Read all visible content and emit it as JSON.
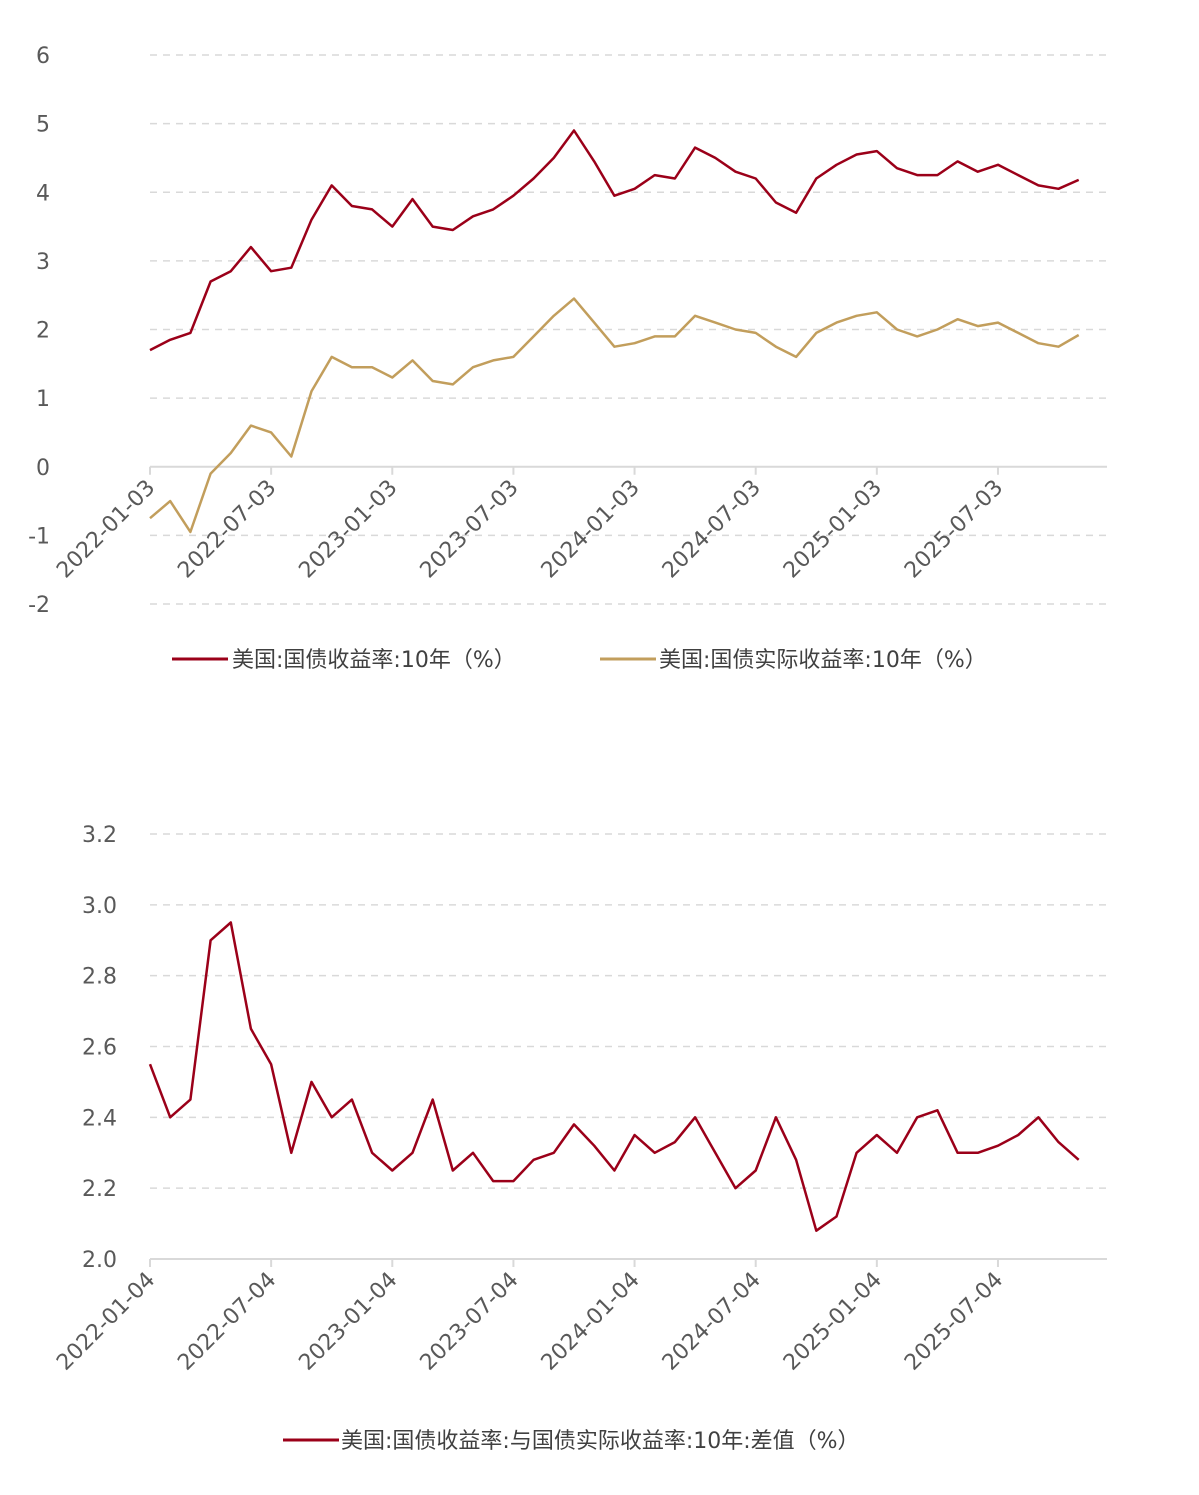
{
  "colors": {
    "nominal": "#9B0019",
    "real": "#C29E5C",
    "spread": "#9B0019",
    "grid": "#D9D9D9",
    "axis": "#D9D9D9"
  },
  "chart_data": [
    {
      "type": "line",
      "title": "",
      "xlabel": "",
      "ylabel": "",
      "ylim": [
        -2,
        6
      ],
      "yticks": [
        "6",
        "5",
        "4",
        "3",
        "2",
        "1",
        "0",
        "-1",
        "-2"
      ],
      "xticks": [
        "2022-01-03",
        "2022-07-03",
        "2023-01-03",
        "2023-07-03",
        "2024-01-03",
        "2024-07-03",
        "2025-01-03",
        "2025-07-03"
      ],
      "grid": true,
      "legend_position": "bottom",
      "x": [
        "2022-01",
        "2022-02",
        "2022-03",
        "2022-04",
        "2022-05",
        "2022-06",
        "2022-07",
        "2022-08",
        "2022-09",
        "2022-10",
        "2022-11",
        "2022-12",
        "2023-01",
        "2023-02",
        "2023-03",
        "2023-04",
        "2023-05",
        "2023-06",
        "2023-07",
        "2023-08",
        "2023-09",
        "2023-10",
        "2023-11",
        "2023-12",
        "2024-01",
        "2024-02",
        "2024-03",
        "2024-04",
        "2024-05",
        "2024-06",
        "2024-07",
        "2024-08",
        "2024-09",
        "2024-10",
        "2024-11",
        "2024-12",
        "2025-01",
        "2025-02",
        "2025-03",
        "2025-04",
        "2025-05",
        "2025-06",
        "2025-07",
        "2025-08",
        "2025-09",
        "2025-10",
        "2025-11"
      ],
      "series": [
        {
          "name": "美国:国债收益率:10年（%）",
          "values": [
            1.7,
            1.85,
            1.95,
            2.7,
            2.85,
            3.2,
            2.85,
            2.9,
            3.6,
            4.1,
            3.8,
            3.75,
            3.5,
            3.9,
            3.5,
            3.45,
            3.65,
            3.75,
            3.95,
            4.2,
            4.5,
            4.9,
            4.45,
            3.95,
            4.05,
            4.25,
            4.2,
            4.65,
            4.5,
            4.3,
            4.2,
            3.85,
            3.7,
            4.2,
            4.4,
            4.55,
            4.6,
            4.35,
            4.25,
            4.25,
            4.45,
            4.3,
            4.4,
            4.25,
            4.1,
            4.05,
            4.18
          ]
        },
        {
          "name": "美国:国债实际收益率:10年（%）",
          "values": [
            -0.75,
            -0.5,
            -0.95,
            -0.1,
            0.2,
            0.6,
            0.5,
            0.15,
            1.1,
            1.6,
            1.45,
            1.45,
            1.3,
            1.55,
            1.25,
            1.2,
            1.45,
            1.55,
            1.6,
            1.9,
            2.2,
            2.45,
            2.1,
            1.75,
            1.8,
            1.9,
            1.9,
            2.2,
            2.1,
            2.0,
            1.95,
            1.75,
            1.6,
            1.95,
            2.1,
            2.2,
            2.25,
            2.0,
            1.9,
            2.0,
            2.15,
            2.05,
            2.1,
            1.95,
            1.8,
            1.75,
            1.92
          ]
        }
      ]
    },
    {
      "type": "line",
      "title": "",
      "xlabel": "",
      "ylabel": "",
      "ylim": [
        2.0,
        3.2
      ],
      "yticks": [
        "3.2",
        "3.0",
        "2.8",
        "2.6",
        "2.4",
        "2.2",
        "2.0"
      ],
      "xticks": [
        "2022-01-04",
        "2022-07-04",
        "2023-01-04",
        "2023-07-04",
        "2024-01-04",
        "2024-07-04",
        "2025-01-04",
        "2025-07-04"
      ],
      "grid": true,
      "legend_position": "bottom",
      "x": [
        "2022-01",
        "2022-02",
        "2022-03",
        "2022-04",
        "2022-05",
        "2022-06",
        "2022-07",
        "2022-08",
        "2022-09",
        "2022-10",
        "2022-11",
        "2022-12",
        "2023-01",
        "2023-02",
        "2023-03",
        "2023-04",
        "2023-05",
        "2023-06",
        "2023-07",
        "2023-08",
        "2023-09",
        "2023-10",
        "2023-11",
        "2023-12",
        "2024-01",
        "2024-02",
        "2024-03",
        "2024-04",
        "2024-05",
        "2024-06",
        "2024-07",
        "2024-08",
        "2024-09",
        "2024-10",
        "2024-11",
        "2024-12",
        "2025-01",
        "2025-02",
        "2025-03",
        "2025-04",
        "2025-05",
        "2025-06",
        "2025-07",
        "2025-08",
        "2025-09",
        "2025-10",
        "2025-11"
      ],
      "series": [
        {
          "name": "美国:国债收益率:与国债实际收益率:10年:差值（%）",
          "values": [
            2.55,
            2.4,
            2.45,
            2.9,
            2.95,
            2.65,
            2.55,
            2.3,
            2.5,
            2.4,
            2.45,
            2.3,
            2.25,
            2.3,
            2.45,
            2.25,
            2.3,
            2.22,
            2.22,
            2.28,
            2.3,
            2.38,
            2.32,
            2.25,
            2.35,
            2.3,
            2.33,
            2.4,
            2.3,
            2.2,
            2.25,
            2.4,
            2.28,
            2.08,
            2.12,
            2.3,
            2.35,
            2.3,
            2.4,
            2.42,
            2.3,
            2.3,
            2.32,
            2.35,
            2.4,
            2.33,
            2.28
          ]
        }
      ]
    }
  ]
}
